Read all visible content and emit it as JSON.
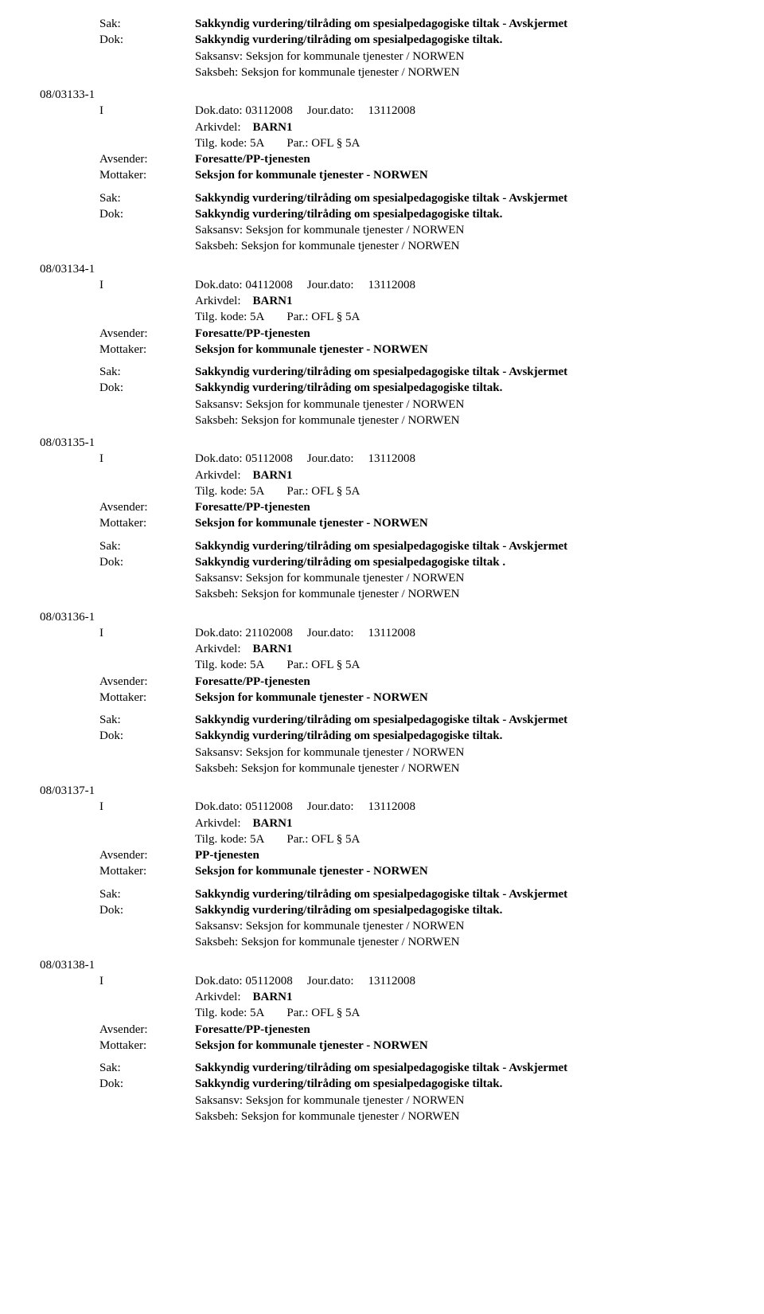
{
  "labels": {
    "sak": "Sak:",
    "dok": "Dok:",
    "avsender": "Avsender:",
    "mottaker": "Mottaker:"
  },
  "commonB": {
    "saksansv": "Saksansv: Seksjon for kommunale tjenester / NORWEN",
    "saksbeh": "Saksbeh: Seksjon for kommunale tjenester / NORWEN",
    "arkivdel": "Arkivdel:",
    "arkivdel_val": "BARN1",
    "tilg": "Tilg. kode:",
    "tilg_val": "5A",
    "par": "Par.:",
    "par_val": "OFL § 5A",
    "jourdato_lbl": "Jour.dato:",
    "jourdato_val": "13112008",
    "sender_fp": "Foresatte/PP-tjenesten",
    "sender_pp": "PP-tjenesten",
    "receiver": "Seksjon for kommunale tjenester - NORWEN",
    "sak_title": "Sakkyndig vurdering/tilråding om spesialpedagogiske tiltak - Avskjermet",
    "dok_title": "Sakkyndig vurdering/tilråding om spesialpedagogiske tiltak.",
    "dok_title_alt": "Sakkyndig vurdering/tilråding om spesialpedagogiske tiltak .",
    "i": "I",
    "dokdato_lbl": "Dok.dato:"
  },
  "entries": [
    {
      "id": "08/03133-1",
      "dokdato": "03112008",
      "sender": "Foresatte/PP-tjenesten",
      "dok_title_key": "dok_title"
    },
    {
      "id": "08/03134-1",
      "dokdato": "04112008",
      "sender": "Foresatte/PP-tjenesten",
      "dok_title_key": "dok_title"
    },
    {
      "id": "08/03135-1",
      "dokdato": "05112008",
      "sender": "Foresatte/PP-tjenesten",
      "dok_title_key": "dok_title"
    },
    {
      "id": "08/03136-1",
      "dokdato": "21102008",
      "sender": "Foresatte/PP-tjenesten",
      "dok_title_key": "dok_title_alt"
    },
    {
      "id": "08/03137-1",
      "dokdato": "05112008",
      "sender": "PP-tjenesten",
      "dok_title_key": "dok_title"
    },
    {
      "id": "08/03138-1",
      "dokdato": "05112008",
      "sender": "Foresatte/PP-tjenesten",
      "dok_title_key": "dok_title"
    }
  ]
}
